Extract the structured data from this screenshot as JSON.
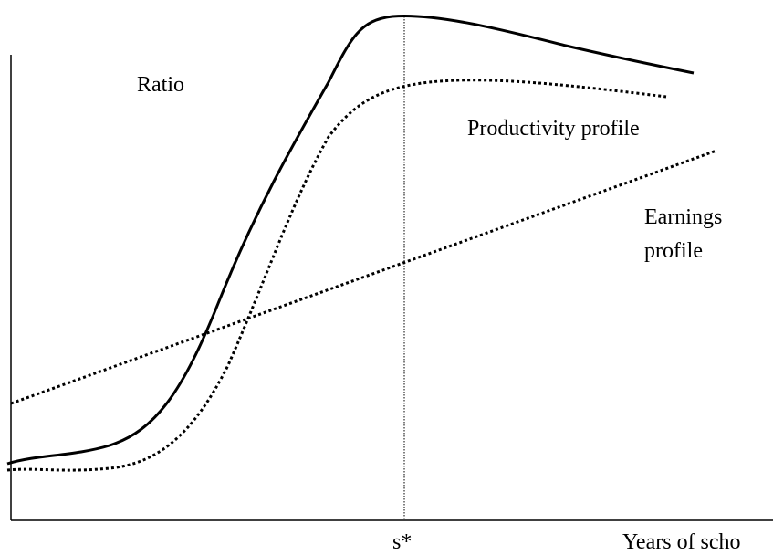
{
  "y_axis_label": "Ratio",
  "curves": {
    "productivity": "Productivity profile",
    "earnings": [
      "Earnings",
      "profile"
    ]
  },
  "x_axis": {
    "marker": "s*",
    "label": "Years of scho"
  }
}
